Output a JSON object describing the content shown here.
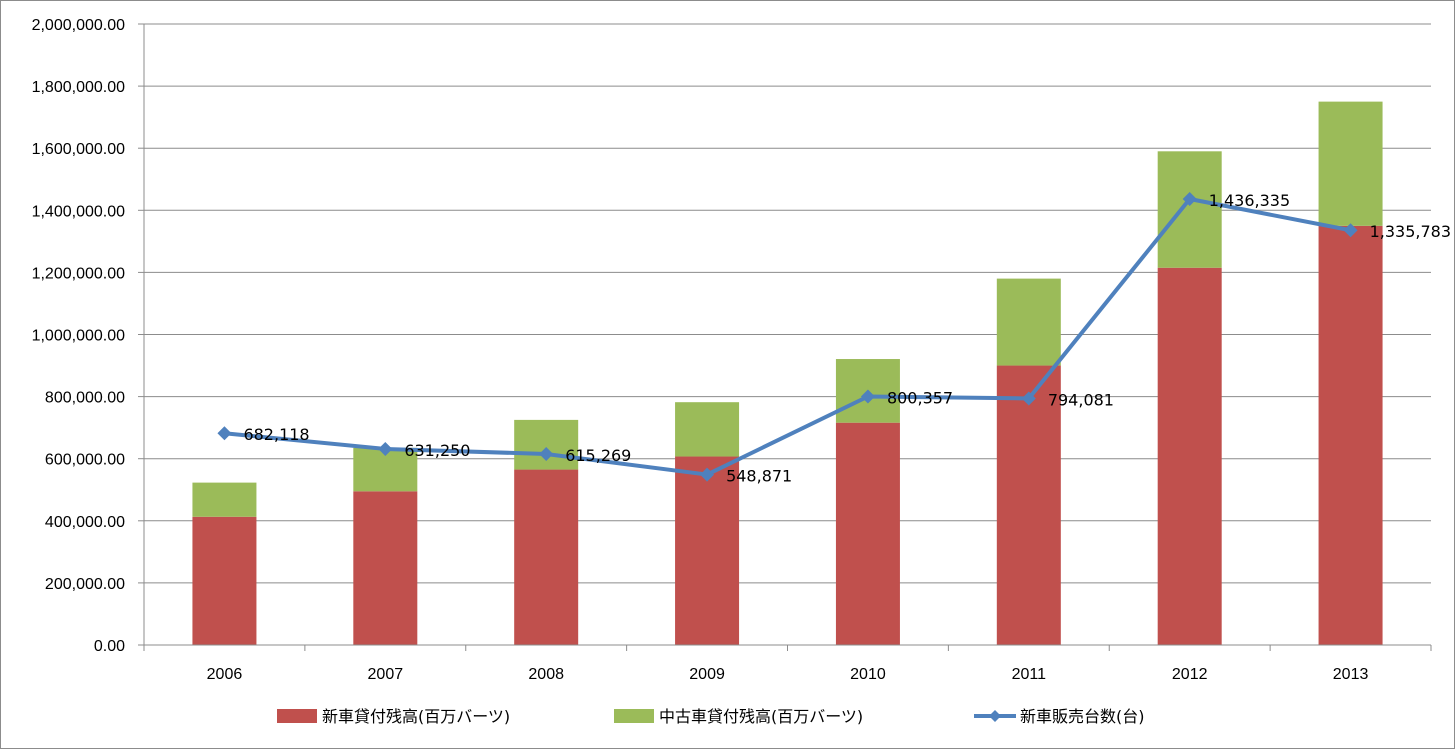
{
  "chart_data": {
    "type": "bar",
    "stacked": true,
    "categories": [
      "2006",
      "2007",
      "2008",
      "2009",
      "2010",
      "2011",
      "2012",
      "2013"
    ],
    "ylim": [
      0,
      2000000
    ],
    "ytick_values": [
      0,
      200000,
      400000,
      600000,
      800000,
      1000000,
      1200000,
      1400000,
      1600000,
      1800000,
      2000000
    ],
    "ytick_labels": [
      "0.00",
      "200,000.00",
      "400,000.00",
      "600,000.00",
      "800,000.00",
      "1,000,000.00",
      "1,200,000.00",
      "1,400,000.00",
      "1,600,000.00",
      "1,800,000.00",
      "2,000,000.00"
    ],
    "grid": true,
    "legend_position": "bottom",
    "series": [
      {
        "name": "新車貸付残高(百万バーツ)",
        "type": "bar",
        "color": "#c0504d",
        "values": [
          413000,
          495000,
          565000,
          607000,
          716000,
          900000,
          1215000,
          1350000
        ]
      },
      {
        "name": "中古車貸付残高(百万バーツ)",
        "type": "bar",
        "color": "#9bbb59",
        "values": [
          110000,
          140000,
          160000,
          175000,
          205000,
          280000,
          375000,
          400000
        ]
      },
      {
        "name": "新車販売台数(台)",
        "type": "line",
        "color": "#4f81bd",
        "values": [
          682118,
          631250,
          615269,
          548871,
          800357,
          794081,
          1436335,
          1335783
        ],
        "labels": [
          "682,118",
          "631,250",
          "615,269",
          "548,871",
          "800,357",
          "794,081",
          "1,436,335",
          "1,335,783"
        ]
      }
    ]
  }
}
